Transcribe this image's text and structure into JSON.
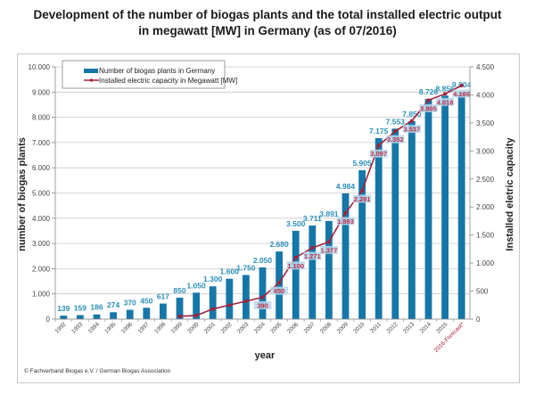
{
  "title_line1": "Development of the number of biogas plants and the total installed electric output",
  "title_line2": "in megawatt [MW] in Germany (as of 07/2016)",
  "copyright": "© Fachverband Biogas e.V. / German Biogas Association",
  "colors": {
    "bars": "#1577a8",
    "line": "#a3203a",
    "bar_label": "#2a8fb8",
    "line_label": "#c0304a",
    "label_bg": "#b8d7ec"
  },
  "chart_data": {
    "type": "bar",
    "title": "Development of the number of biogas plants and the total installed electric output in megawatt [MW] in Germany (as of 07/2016)",
    "xlabel": "year",
    "ylabel": "number of biogas plants",
    "y2label": "Installed eletric capacity",
    "categories": [
      "1992",
      "1993",
      "1994",
      "1995",
      "1996",
      "1997",
      "1998",
      "1999",
      "2000",
      "2001",
      "2002",
      "2003",
      "2004",
      "2005",
      "2006",
      "2007",
      "2008",
      "2009",
      "2010",
      "2011",
      "2012",
      "2013",
      "2014",
      "2015",
      "2016-Forecast*"
    ],
    "ylim": [
      0,
      10000
    ],
    "y2lim": [
      0,
      4500
    ],
    "yticks": [
      "0",
      "1.000",
      "2.000",
      "3.000",
      "4.000",
      "5.000",
      "6.000",
      "7.000",
      "8.000",
      "9.000",
      "10.000"
    ],
    "y2ticks": [
      "0",
      "500",
      "1.000",
      "1.500",
      "2.000",
      "2.500",
      "3.000",
      "3.500",
      "4.000",
      "4.500"
    ],
    "grid": true,
    "legend_position": "top-left",
    "series": [
      {
        "name": "Number of biogas plants in Germany",
        "type": "bar",
        "axis": "left",
        "values": [
          139,
          159,
          186,
          274,
          370,
          450,
          617,
          850,
          1050,
          1300,
          1600,
          1750,
          2050,
          2680,
          3500,
          3711,
          3891,
          4984,
          5905,
          7175,
          7553,
          7850,
          8726,
          8856,
          9004
        ],
        "labels": [
          "139",
          "159",
          "186",
          "274",
          "370",
          "450",
          "617",
          "850",
          "1.050",
          "1.300",
          "1.600",
          "1.750",
          "2.050",
          "2.680",
          "3.500",
          "3.711",
          "3.891",
          "4.984",
          "5.905",
          "7.175",
          "7.553",
          "7.850",
          "8.726",
          "8.856",
          "9.004"
        ]
      },
      {
        "name": "Installed electric capacity in Megawatt [MW]",
        "type": "line",
        "axis": "right",
        "values": [
          null,
          null,
          null,
          null,
          null,
          null,
          null,
          50,
          65,
          180,
          250,
          320,
          390,
          650,
          1100,
          1271,
          1377,
          1893,
          2291,
          3097,
          3352,
          3537,
          3905,
          4018,
          4166
        ],
        "labels": [
          null,
          null,
          null,
          null,
          null,
          null,
          null,
          null,
          null,
          null,
          null,
          null,
          "390",
          "650",
          "1.100",
          "1.271",
          "1.377",
          "1.893",
          "2.291",
          "3.097",
          "3.352",
          "3.537",
          "3.905",
          "4.018",
          "4.166"
        ]
      }
    ]
  }
}
